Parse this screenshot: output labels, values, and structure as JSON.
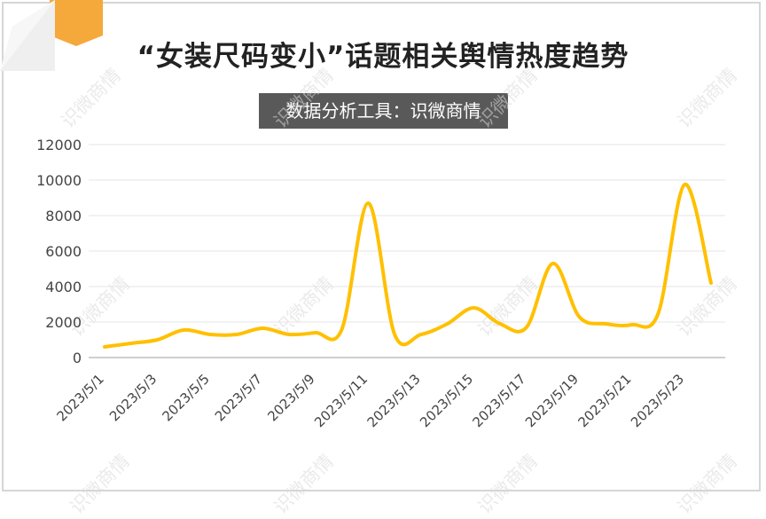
{
  "watermark": "识微商情",
  "colors": {
    "line": "#FFC000",
    "ribbon": "#F5A93A",
    "grid": "#e6e6e6",
    "axis": "#bfbfbf"
  },
  "chart_data": {
    "type": "line",
    "title": "“女装尺码变小”话题相关舆情热度趋势",
    "subtitle": "数据分析工具：识微商情",
    "xlabel": "",
    "ylabel": "",
    "ylim": [
      0,
      12000
    ],
    "yticks": [
      0,
      2000,
      4000,
      6000,
      8000,
      10000,
      12000
    ],
    "grid": true,
    "categories": [
      "2023/5/1",
      "2023/5/2",
      "2023/5/3",
      "2023/5/4",
      "2023/5/5",
      "2023/5/6",
      "2023/5/7",
      "2023/5/8",
      "2023/5/9",
      "2023/5/10",
      "2023/5/11",
      "2023/5/12",
      "2023/5/13",
      "2023/5/14",
      "2023/5/15",
      "2023/5/16",
      "2023/5/17",
      "2023/5/18",
      "2023/5/19",
      "2023/5/20",
      "2023/5/21",
      "2023/5/22",
      "2023/5/23",
      "2023/5/24"
    ],
    "xtick_labels": [
      "2023/5/1",
      "2023/5/3",
      "2023/5/5",
      "2023/5/7",
      "2023/5/9",
      "2023/5/11",
      "2023/5/13",
      "2023/5/15",
      "2023/5/17",
      "2023/5/19",
      "2023/5/21",
      "2023/5/23"
    ],
    "series": [
      {
        "values": [
          600,
          800,
          1000,
          1550,
          1300,
          1300,
          1650,
          1300,
          1400,
          1600,
          8700,
          1300,
          1300,
          1900,
          2800,
          1900,
          1700,
          5300,
          2300,
          1900,
          1850,
          2500,
          9750,
          4200
        ]
      }
    ]
  }
}
